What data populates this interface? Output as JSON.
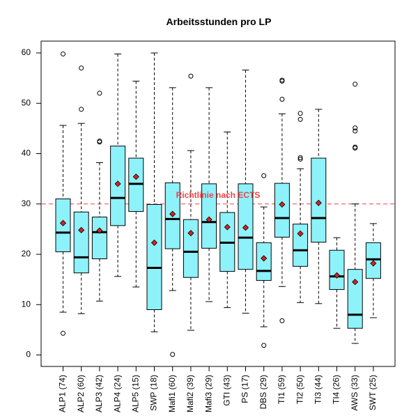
{
  "chart_data": {
    "type": "boxplot",
    "title": "Arbeitsstunden pro LP",
    "xlabel": "",
    "ylabel": "",
    "ylim": [
      0,
      60
    ],
    "yticks": [
      0,
      10,
      20,
      30,
      40,
      50,
      60
    ],
    "grid": false,
    "legend": "none",
    "box_color": "#8EF2FB",
    "mean_marker_color": "#D9221E",
    "reference_line": {
      "value": 30,
      "label": "Richtlinie nach ECTS",
      "color": "#E8454B"
    },
    "categories": [
      "ALP1 (74)",
      "ALP2 (60)",
      "ALP3 (42)",
      "ALP4 (24)",
      "ALP5 (15)",
      "SWP (18)",
      "Mafi1 (60)",
      "Mafi2 (39)",
      "Mafi3 (29)",
      "GTI (43)",
      "PS (17)",
      "DBS (29)",
      "TI1 (59)",
      "TI2 (50)",
      "TI3 (44)",
      "TI4 (26)",
      "AWS (33)",
      "SWT (25)"
    ],
    "series": [
      {
        "values": [
          {
            "whisker_low": 8.5,
            "q1": 20.5,
            "median": 24.3,
            "q3": 31.0,
            "whisker_high": 45.6,
            "mean": 26.2,
            "outliers": [
              59.8,
              4.3
            ]
          },
          {
            "whisker_low": 8.2,
            "q1": 16.3,
            "median": 19.4,
            "q3": 28.4,
            "whisker_high": 46.0,
            "mean": 24.8,
            "outliers": [
              57.0,
              48.8
            ]
          },
          {
            "whisker_low": 10.7,
            "q1": 19.1,
            "median": 24.4,
            "q3": 27.4,
            "whisker_high": 38.2,
            "mean": 24.7,
            "outliers": [
              52.0,
              42.5,
              42.3
            ]
          },
          {
            "whisker_low": 15.6,
            "q1": 25.7,
            "median": 31.2,
            "q3": 41.5,
            "whisker_high": 59.8,
            "mean": 34.0,
            "outliers": []
          },
          {
            "whisker_low": 13.5,
            "q1": 28.5,
            "median": 34.0,
            "q3": 39.1,
            "whisker_high": 54.4,
            "mean": 35.4,
            "outliers": []
          },
          {
            "whisker_low": 4.6,
            "q1": 9.0,
            "median": 17.3,
            "q3": 29.9,
            "whisker_high": 60.0,
            "mean": 22.3,
            "outliers": []
          },
          {
            "whisker_low": 12.8,
            "q1": 21.1,
            "median": 27.0,
            "q3": 34.2,
            "whisker_high": 53.1,
            "mean": 28.0,
            "outliers": [
              0.1
            ]
          },
          {
            "whisker_low": 4.9,
            "q1": 15.4,
            "median": 20.5,
            "q3": 26.9,
            "whisker_high": 40.6,
            "mean": 24.2,
            "outliers": [
              55.4
            ]
          },
          {
            "whisker_low": 10.6,
            "q1": 21.2,
            "median": 26.4,
            "q3": 34.0,
            "whisker_high": 53.1,
            "mean": 26.9,
            "outliers": []
          },
          {
            "whisker_low": 9.4,
            "q1": 16.6,
            "median": 22.3,
            "q3": 28.3,
            "whisker_high": 44.3,
            "mean": 25.4,
            "outliers": []
          },
          {
            "whisker_low": 8.3,
            "q1": 17.0,
            "median": 23.3,
            "q3": 34.0,
            "whisker_high": 56.6,
            "mean": 25.3,
            "outliers": []
          },
          {
            "whisker_low": 5.6,
            "q1": 14.8,
            "median": 16.7,
            "q3": 22.3,
            "whisker_high": 29.4,
            "mean": 19.2,
            "outliers": [
              35.6,
              1.9
            ]
          },
          {
            "whisker_low": 13.6,
            "q1": 23.4,
            "median": 27.2,
            "q3": 34.1,
            "whisker_high": 47.9,
            "mean": 29.9,
            "outliers": [
              54.4,
              54.6,
              50.8,
              6.8
            ]
          },
          {
            "whisker_low": 10.4,
            "q1": 17.6,
            "median": 20.8,
            "q3": 26.0,
            "whisker_high": 37.0,
            "mean": 24.1,
            "outliers": [
              48.0,
              46.8,
              39.2,
              38.9
            ]
          },
          {
            "whisker_low": 10.2,
            "q1": 22.4,
            "median": 27.2,
            "q3": 39.1,
            "whisker_high": 48.8,
            "mean": 30.2,
            "outliers": []
          },
          {
            "whisker_low": 5.3,
            "q1": 13.0,
            "median": 15.6,
            "q3": 20.8,
            "whisker_high": 23.3,
            "mean": 15.8,
            "outliers": []
          },
          {
            "whisker_low": 2.3,
            "q1": 5.3,
            "median": 8.0,
            "q3": 17.0,
            "whisker_high": 30.0,
            "mean": 14.5,
            "outliers": [
              53.8,
              45.1,
              44.5,
              41.3,
              41.1
            ]
          },
          {
            "whisker_low": 7.4,
            "q1": 15.2,
            "median": 19.0,
            "q3": 22.3,
            "whisker_high": 26.1,
            "mean": 18.2,
            "outliers": []
          }
        ]
      }
    ]
  }
}
